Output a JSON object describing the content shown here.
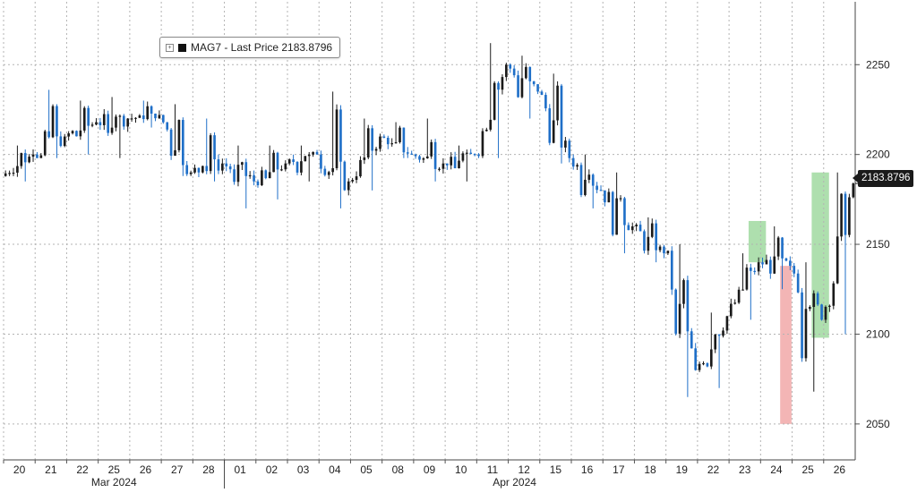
{
  "chart_data": {
    "type": "candlestick",
    "legend": {
      "series": "MAG7",
      "label": "Last Price",
      "value": "2183.8796",
      "text": "MAG7 - Last Price 2183.8796"
    },
    "last_price_label": "2183.8796",
    "y_axis": {
      "position": "right",
      "ticks": [
        2050,
        2100,
        2150,
        2200,
        2250
      ],
      "ylim": [
        2030,
        2285
      ]
    },
    "x_axis": {
      "day_labels": [
        "20",
        "21",
        "22",
        "25",
        "26",
        "27",
        "28",
        "01",
        "02",
        "03",
        "04",
        "05",
        "08",
        "09",
        "10",
        "11",
        "12",
        "15",
        "16",
        "17",
        "18",
        "19",
        "22",
        "23",
        "24",
        "25",
        "26"
      ],
      "month_labels": [
        {
          "text": "Mar 2024",
          "day_index": 3
        },
        {
          "text": "Apr 2024",
          "day_index": 15.7
        }
      ],
      "month_divider_day_index": 7
    },
    "daily_ohlc": [
      {
        "day": "20",
        "open": 2188,
        "high": 2205,
        "low": 2185,
        "close": 2200
      },
      {
        "day": "21",
        "open": 2200,
        "high": 2236,
        "low": 2198,
        "close": 2210
      },
      {
        "day": "22",
        "open": 2210,
        "high": 2230,
        "low": 2200,
        "close": 2218
      },
      {
        "day": "25",
        "open": 2218,
        "high": 2232,
        "low": 2198,
        "close": 2220
      },
      {
        "day": "26",
        "open": 2220,
        "high": 2230,
        "low": 2215,
        "close": 2222
      },
      {
        "day": "27",
        "open": 2222,
        "high": 2228,
        "low": 2188,
        "close": 2190
      },
      {
        "day": "28",
        "open": 2190,
        "high": 2220,
        "low": 2185,
        "close": 2195
      },
      {
        "day": "01",
        "open": 2195,
        "high": 2205,
        "low": 2170,
        "close": 2185
      },
      {
        "day": "02",
        "open": 2185,
        "high": 2205,
        "low": 2175,
        "close": 2195
      },
      {
        "day": "03",
        "open": 2195,
        "high": 2205,
        "low": 2185,
        "close": 2200
      },
      {
        "day": "04",
        "open": 2200,
        "high": 2235,
        "low": 2170,
        "close": 2185
      },
      {
        "day": "05",
        "open": 2185,
        "high": 2220,
        "low": 2180,
        "close": 2210
      },
      {
        "day": "08",
        "open": 2210,
        "high": 2218,
        "low": 2198,
        "close": 2200
      },
      {
        "day": "09",
        "open": 2200,
        "high": 2220,
        "low": 2185,
        "close": 2195
      },
      {
        "day": "10",
        "open": 2195,
        "high": 2205,
        "low": 2185,
        "close": 2200
      },
      {
        "day": "11",
        "open": 2200,
        "high": 2262,
        "low": 2198,
        "close": 2250
      },
      {
        "day": "12",
        "open": 2250,
        "high": 2255,
        "low": 2220,
        "close": 2235
      },
      {
        "day": "15",
        "open": 2235,
        "high": 2245,
        "low": 2195,
        "close": 2198
      },
      {
        "day": "16",
        "open": 2198,
        "high": 2200,
        "low": 2170,
        "close": 2180
      },
      {
        "day": "17",
        "open": 2180,
        "high": 2190,
        "low": 2145,
        "close": 2160
      },
      {
        "day": "18",
        "open": 2160,
        "high": 2165,
        "low": 2140,
        "close": 2145
      },
      {
        "day": "19",
        "open": 2145,
        "high": 2150,
        "low": 2065,
        "close": 2080
      },
      {
        "day": "22",
        "open": 2080,
        "high": 2112,
        "low": 2070,
        "close": 2110
      },
      {
        "day": "23",
        "open": 2110,
        "high": 2145,
        "low": 2108,
        "close": 2140
      },
      {
        "day": "24",
        "open": 2140,
        "high": 2160,
        "low": 2125,
        "close": 2138
      },
      {
        "day": "25",
        "open": 2138,
        "high": 2140,
        "low": 2068,
        "close": 2108
      },
      {
        "day": "26",
        "open": 2108,
        "high": 2190,
        "low": 2100,
        "close": 2183.8796
      }
    ],
    "highlights": [
      {
        "color": "green",
        "start_day": "23",
        "from": 2140,
        "to": 2163
      },
      {
        "color": "red",
        "start_day": "24",
        "from": 2138,
        "to": 2050
      },
      {
        "color": "green",
        "start_day": "25",
        "from": 2098,
        "to": 2190
      }
    ],
    "grid": true,
    "legend_position": "top-left",
    "colors": {
      "candle_up": "#1a1a1a",
      "candle_down": "#1f6fc8",
      "grid": "#b3b3b3",
      "highlight_green": "#9ad79a",
      "highlight_red": "#f0a3a3",
      "price_tag_bg": "#1a1a1a"
    }
  }
}
